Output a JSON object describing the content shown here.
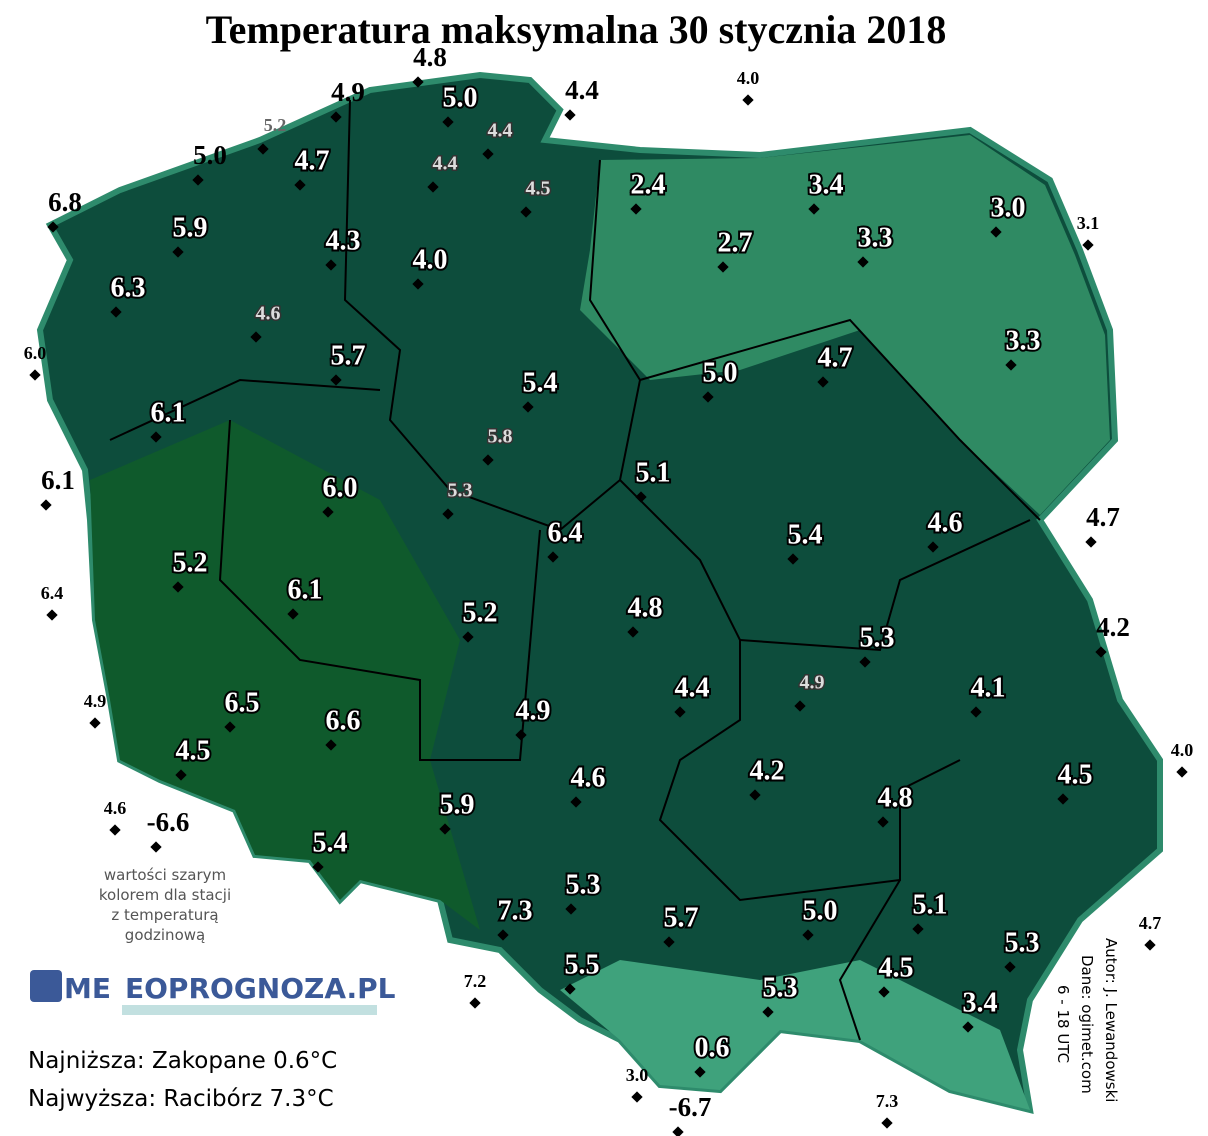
{
  "title": "Temperatura maksymalna 30 stycznia 2018",
  "stations": [
    "5.0",
    "4.7",
    "5.9",
    "4.3",
    "4.0",
    "6.3",
    "5.7",
    "6.1",
    "6.0",
    "5.2",
    "6.1",
    "6.5",
    "6.6",
    "4.5",
    "5.4",
    "5.9",
    "7.3",
    "5.3",
    "5.5",
    "5.7",
    "5.3",
    "0.6",
    "5.0",
    "5.1",
    "4.5",
    "3.4",
    "5.3",
    "4.8",
    "4.5",
    "4.1",
    "5.3",
    "4.6",
    "5.4",
    "4.4",
    "4.8",
    "4.9",
    "4.6",
    "4.2",
    "5.2",
    "6.4",
    "5.1",
    "5.0",
    "4.7",
    "5.4",
    "2.4",
    "2.7",
    "3.4",
    "3.3",
    "3.0",
    "3.3"
  ],
  "hourly_stations": [
    "4.4",
    "4.4",
    "4.5",
    "4.6",
    "5.8",
    "5.3",
    "4.9"
  ],
  "outside_stations": [
    "4.8",
    "4.9",
    "4.4",
    "5.0",
    "6.8",
    "6.1",
    "-6.6",
    "4.7",
    "4.2",
    "-6.7"
  ],
  "outside_small": [
    "4.0",
    "3.1",
    "6.0",
    "6.4",
    "4.9",
    "4.6",
    "4.0",
    "4.7",
    "7.2",
    "3.0",
    "7.3"
  ],
  "outside_gray": [
    "5.2"
  ],
  "note": [
    "wartości szarym",
    "kolorem dla stacji",
    "z temperaturą",
    "godzinową"
  ],
  "logo": {
    "part1": "ME",
    "part2": "EOPROGNOZA.PL"
  },
  "lowest": "Najniższa: Zakopane 0.6°C",
  "highest": "Najwyższa: Racibórz 7.3°C",
  "credits": [
    "Autor: J. Lewandowski",
    "Dane: ogimet.com",
    "6 - 18 UTC"
  ]
}
